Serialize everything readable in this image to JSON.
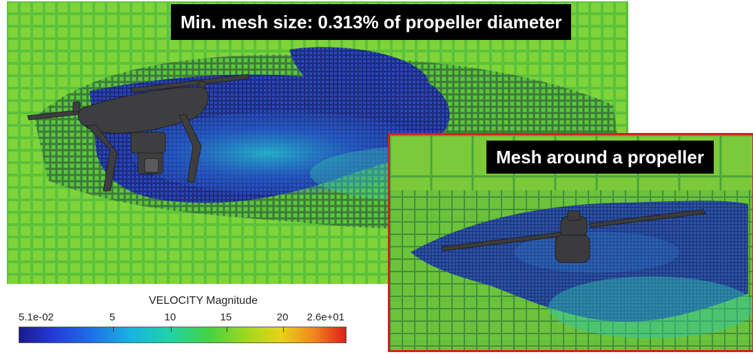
{
  "main_view": {
    "caption": "Min. mesh size: 0.313% of propeller diameter"
  },
  "inset_view": {
    "caption": "Mesh around a propeller",
    "frame_color": "#d41f1f"
  },
  "legend": {
    "title": "VELOCITY Magnitude",
    "min_label": "5.1e-02",
    "max_label": "2.6e+01",
    "ticks": [
      "5",
      "10",
      "15",
      "20"
    ],
    "range": [
      0.051,
      26
    ],
    "tick_values": [
      5,
      10,
      15,
      20
    ],
    "colors": [
      "#1a1a8c",
      "#2438d8",
      "#1f6ee8",
      "#18b4e0",
      "#1ed2a6",
      "#44d244",
      "#a4d81c",
      "#e6d41a",
      "#f0891c",
      "#e11d1d"
    ]
  }
}
